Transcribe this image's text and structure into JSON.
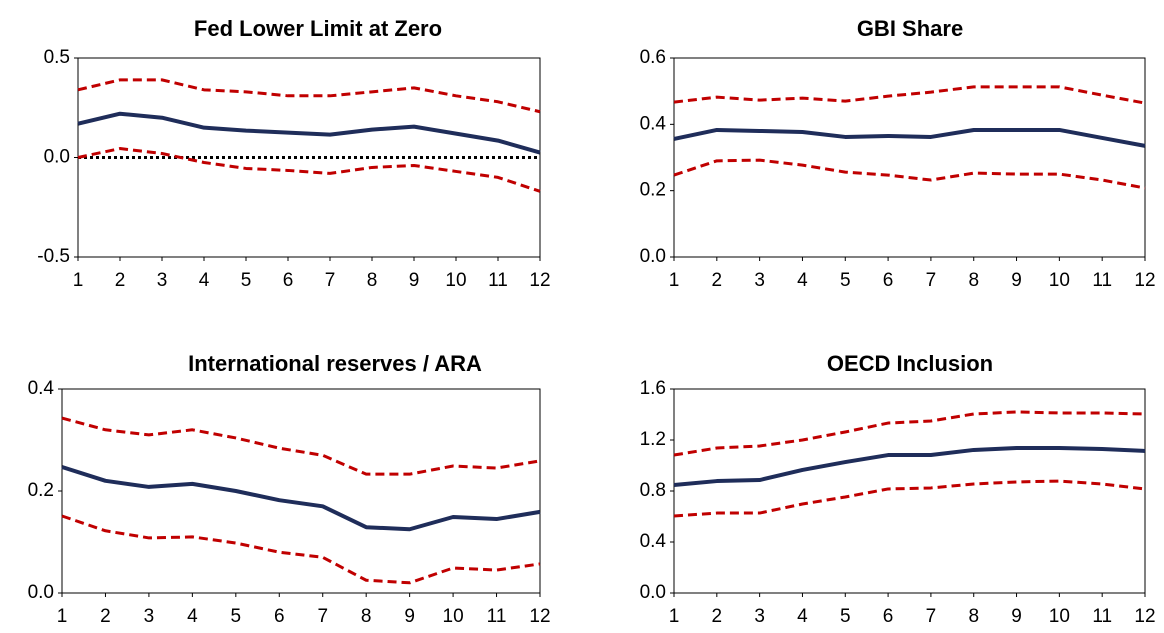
{
  "chart_data": [
    {
      "type": "line",
      "title": "Fed Lower Limit at Zero",
      "x": [
        1,
        2,
        3,
        4,
        5,
        6,
        7,
        8,
        9,
        10,
        11,
        12
      ],
      "xlim": [
        1,
        12
      ],
      "xticks": [
        1,
        2,
        3,
        4,
        5,
        6,
        7,
        8,
        9,
        10,
        11,
        12
      ],
      "ylim": [
        -0.5,
        0.5
      ],
      "yticks": [
        -0.5,
        {
          "value": 0,
          "label": "0.0"
        },
        0.5
      ],
      "zero_line": true,
      "series": [
        {
          "color": "#1f2d5a",
          "dashed": false,
          "values": [
            0.17,
            0.22,
            0.2,
            0.15,
            0.135,
            0.125,
            0.115,
            0.14,
            0.155,
            0.12,
            0.085,
            0.025
          ]
        },
        {
          "color": "#c00000",
          "dashed": true,
          "values": [
            0.34,
            0.39,
            0.39,
            0.34,
            0.33,
            0.31,
            0.31,
            0.33,
            0.35,
            0.31,
            0.28,
            0.23
          ]
        },
        {
          "color": "#c00000",
          "dashed": true,
          "values": [
            0.0,
            0.045,
            0.02,
            -0.025,
            -0.055,
            -0.065,
            -0.08,
            -0.05,
            -0.04,
            -0.07,
            -0.1,
            -0.17
          ]
        }
      ]
    },
    {
      "type": "line",
      "title": "GBI Share",
      "x": [
        1,
        2,
        3,
        4,
        5,
        6,
        7,
        8,
        9,
        10,
        11,
        12
      ],
      "xlim": [
        1,
        12
      ],
      "xticks": [
        1,
        2,
        3,
        4,
        5,
        6,
        7,
        8,
        9,
        10,
        11,
        12
      ],
      "ylim": [
        0,
        0.6
      ],
      "yticks": [
        {
          "value": 0,
          "label": "0.0"
        },
        0.2,
        0.4,
        0.6
      ],
      "zero_line": false,
      "series": [
        {
          "color": "#1f2d5a",
          "dashed": false,
          "values": [
            0.356,
            0.383,
            0.38,
            0.377,
            0.362,
            0.365,
            0.362,
            0.383,
            0.383,
            0.383,
            0.359,
            0.335
          ]
        },
        {
          "color": "#c00000",
          "dashed": true,
          "values": [
            0.467,
            0.482,
            0.473,
            0.479,
            0.47,
            0.485,
            0.497,
            0.513,
            0.513,
            0.513,
            0.488,
            0.464
          ]
        },
        {
          "color": "#c00000",
          "dashed": true,
          "values": [
            0.247,
            0.29,
            0.292,
            0.277,
            0.256,
            0.247,
            0.232,
            0.253,
            0.25,
            0.25,
            0.232,
            0.208
          ]
        }
      ]
    },
    {
      "type": "line",
      "title": "International reserves / ARA",
      "x": [
        1,
        2,
        3,
        4,
        5,
        6,
        7,
        8,
        9,
        10,
        11,
        12
      ],
      "xlim": [
        1,
        12
      ],
      "xticks": [
        1,
        2,
        3,
        4,
        5,
        6,
        7,
        8,
        9,
        10,
        11,
        12
      ],
      "ylim": [
        0,
        0.4
      ],
      "yticks": [
        {
          "value": 0,
          "label": "0.0"
        },
        0.2,
        0.4
      ],
      "zero_line": false,
      "series": [
        {
          "color": "#1f2d5a",
          "dashed": false,
          "values": [
            0.247,
            0.22,
            0.208,
            0.214,
            0.2,
            0.182,
            0.17,
            0.129,
            0.125,
            0.149,
            0.145,
            0.159
          ]
        },
        {
          "color": "#c00000",
          "dashed": true,
          "values": [
            0.343,
            0.32,
            0.31,
            0.32,
            0.304,
            0.284,
            0.27,
            0.233,
            0.233,
            0.249,
            0.245,
            0.259
          ]
        },
        {
          "color": "#c00000",
          "dashed": true,
          "values": [
            0.151,
            0.122,
            0.108,
            0.11,
            0.098,
            0.08,
            0.07,
            0.025,
            0.02,
            0.049,
            0.045,
            0.057
          ]
        }
      ]
    },
    {
      "type": "line",
      "title": "OECD Inclusion",
      "x": [
        1,
        2,
        3,
        4,
        5,
        6,
        7,
        8,
        9,
        10,
        11,
        12
      ],
      "xlim": [
        1,
        12
      ],
      "xticks": [
        1,
        2,
        3,
        4,
        5,
        6,
        7,
        8,
        9,
        10,
        11,
        12
      ],
      "ylim": [
        0,
        1.6
      ],
      "yticks": [
        {
          "value": 0,
          "label": "0.0"
        },
        0.4,
        0.8,
        1.2,
        1.6
      ],
      "zero_line": false,
      "series": [
        {
          "color": "#1f2d5a",
          "dashed": false,
          "values": [
            0.847,
            0.878,
            0.886,
            0.965,
            1.027,
            1.082,
            1.082,
            1.122,
            1.137,
            1.137,
            1.129,
            1.114
          ]
        },
        {
          "color": "#c00000",
          "dashed": true,
          "values": [
            1.082,
            1.137,
            1.153,
            1.2,
            1.263,
            1.333,
            1.349,
            1.404,
            1.42,
            1.412,
            1.412,
            1.404
          ]
        },
        {
          "color": "#c00000",
          "dashed": true,
          "values": [
            0.604,
            0.627,
            0.627,
            0.698,
            0.753,
            0.816,
            0.824,
            0.855,
            0.871,
            0.878,
            0.855,
            0.816
          ]
        }
      ]
    }
  ]
}
